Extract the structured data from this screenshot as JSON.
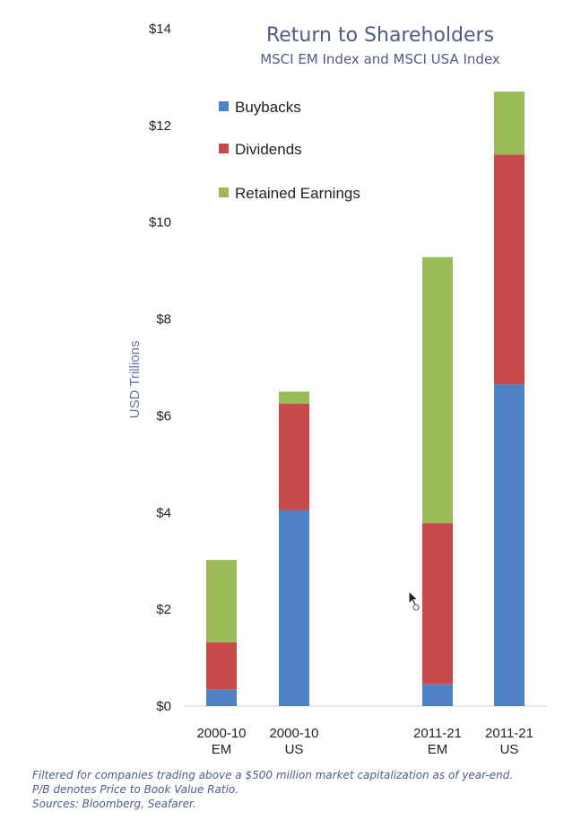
{
  "colors": {
    "buybacks": "#4f81c4",
    "dividends": "#c84b4b",
    "retained": "#9bbb59",
    "title": "#4f5a8a"
  },
  "chart_data": {
    "type": "bar",
    "stacked": true,
    "title": "Return to Shareholders",
    "subtitle": "MSCI EM Index and MSCI USA Index",
    "xlabel": "",
    "ylabel": "USD Trillions",
    "ylim": [
      0,
      14
    ],
    "yticks": [
      0,
      2,
      4,
      6,
      8,
      10,
      12,
      14
    ],
    "ytick_labels": [
      "$0",
      "$2",
      "$4",
      "$6",
      "$8",
      "$10",
      "$12",
      "$14"
    ],
    "legend_position": "top-left",
    "categories": [
      {
        "line1": "2000-10",
        "line2": "EM"
      },
      {
        "line1": "2000-10",
        "line2": "US"
      },
      {
        "line1": "2011-21",
        "line2": "EM"
      },
      {
        "line1": "2011-21",
        "line2": "US"
      }
    ],
    "series": [
      {
        "name": "Buybacks",
        "key": "buybacks",
        "values": [
          0.35,
          4.05,
          0.45,
          6.65
        ]
      },
      {
        "name": "Dividends",
        "key": "dividends",
        "values": [
          0.97,
          2.2,
          3.33,
          4.75
        ]
      },
      {
        "name": "Retained Earnings",
        "key": "retained",
        "values": [
          1.7,
          0.25,
          5.5,
          1.3
        ]
      }
    ]
  },
  "footnotes": {
    "line1": "Filtered for companies trading above a $500 million market capitalization as of year-end.",
    "line2": "P/B denotes Price to Book Value Ratio.",
    "line3": "Sources:  Bloomberg, Seafarer."
  }
}
